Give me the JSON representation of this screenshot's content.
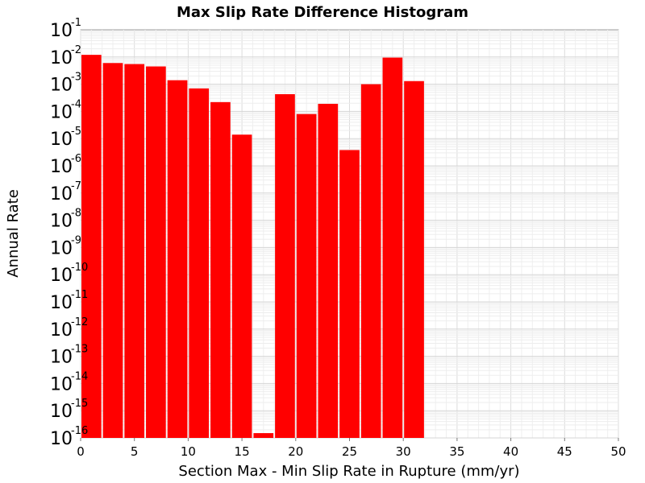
{
  "chart_data": {
    "type": "bar",
    "title": "Max Slip Rate Difference Histogram",
    "xlabel": "Section Max - Min Slip Rate in Rupture (mm/yr)",
    "ylabel": "Annual Rate",
    "xlim": [
      0,
      50
    ],
    "ylim": [
      1e-16,
      0.1
    ],
    "yscale": "log",
    "grid": true,
    "bar_color": "#ff0000",
    "bin_width": 2,
    "x_ticks": [
      "0",
      "5",
      "10",
      "15",
      "20",
      "25",
      "30",
      "35",
      "40",
      "45",
      "50"
    ],
    "y_ticks": [
      {
        "base": "10",
        "exp": "-16"
      },
      {
        "base": "10",
        "exp": "-15"
      },
      {
        "base": "10",
        "exp": "-14"
      },
      {
        "base": "10",
        "exp": "-13"
      },
      {
        "base": "10",
        "exp": "-12"
      },
      {
        "base": "10",
        "exp": "-11"
      },
      {
        "base": "10",
        "exp": "-10"
      },
      {
        "base": "10",
        "exp": "-9"
      },
      {
        "base": "10",
        "exp": "-8"
      },
      {
        "base": "10",
        "exp": "-7"
      },
      {
        "base": "10",
        "exp": "-6"
      },
      {
        "base": "10",
        "exp": "-5"
      },
      {
        "base": "10",
        "exp": "-4"
      },
      {
        "base": "10",
        "exp": "-3"
      },
      {
        "base": "10",
        "exp": "-2"
      },
      {
        "base": "10",
        "exp": "-1"
      }
    ],
    "bins": [
      {
        "x0": 0,
        "x1": 2,
        "value": 0.012
      },
      {
        "x0": 2,
        "x1": 4,
        "value": 0.006
      },
      {
        "x0": 4,
        "x1": 6,
        "value": 0.0055
      },
      {
        "x0": 6,
        "x1": 8,
        "value": 0.0045
      },
      {
        "x0": 8,
        "x1": 10,
        "value": 0.0014
      },
      {
        "x0": 10,
        "x1": 12,
        "value": 0.0007
      },
      {
        "x0": 12,
        "x1": 14,
        "value": 0.00022
      },
      {
        "x0": 14,
        "x1": 16,
        "value": 1.4e-05
      },
      {
        "x0": 16,
        "x1": 18,
        "value": 1.5e-16
      },
      {
        "x0": 18,
        "x1": 20,
        "value": 0.00043
      },
      {
        "x0": 20,
        "x1": 22,
        "value": 8e-05
      },
      {
        "x0": 22,
        "x1": 24,
        "value": 0.00019
      },
      {
        "x0": 24,
        "x1": 26,
        "value": 3.8e-06
      },
      {
        "x0": 26,
        "x1": 28,
        "value": 0.001
      },
      {
        "x0": 28,
        "x1": 30,
        "value": 0.0095
      },
      {
        "x0": 30,
        "x1": 32,
        "value": 0.0013
      }
    ]
  }
}
